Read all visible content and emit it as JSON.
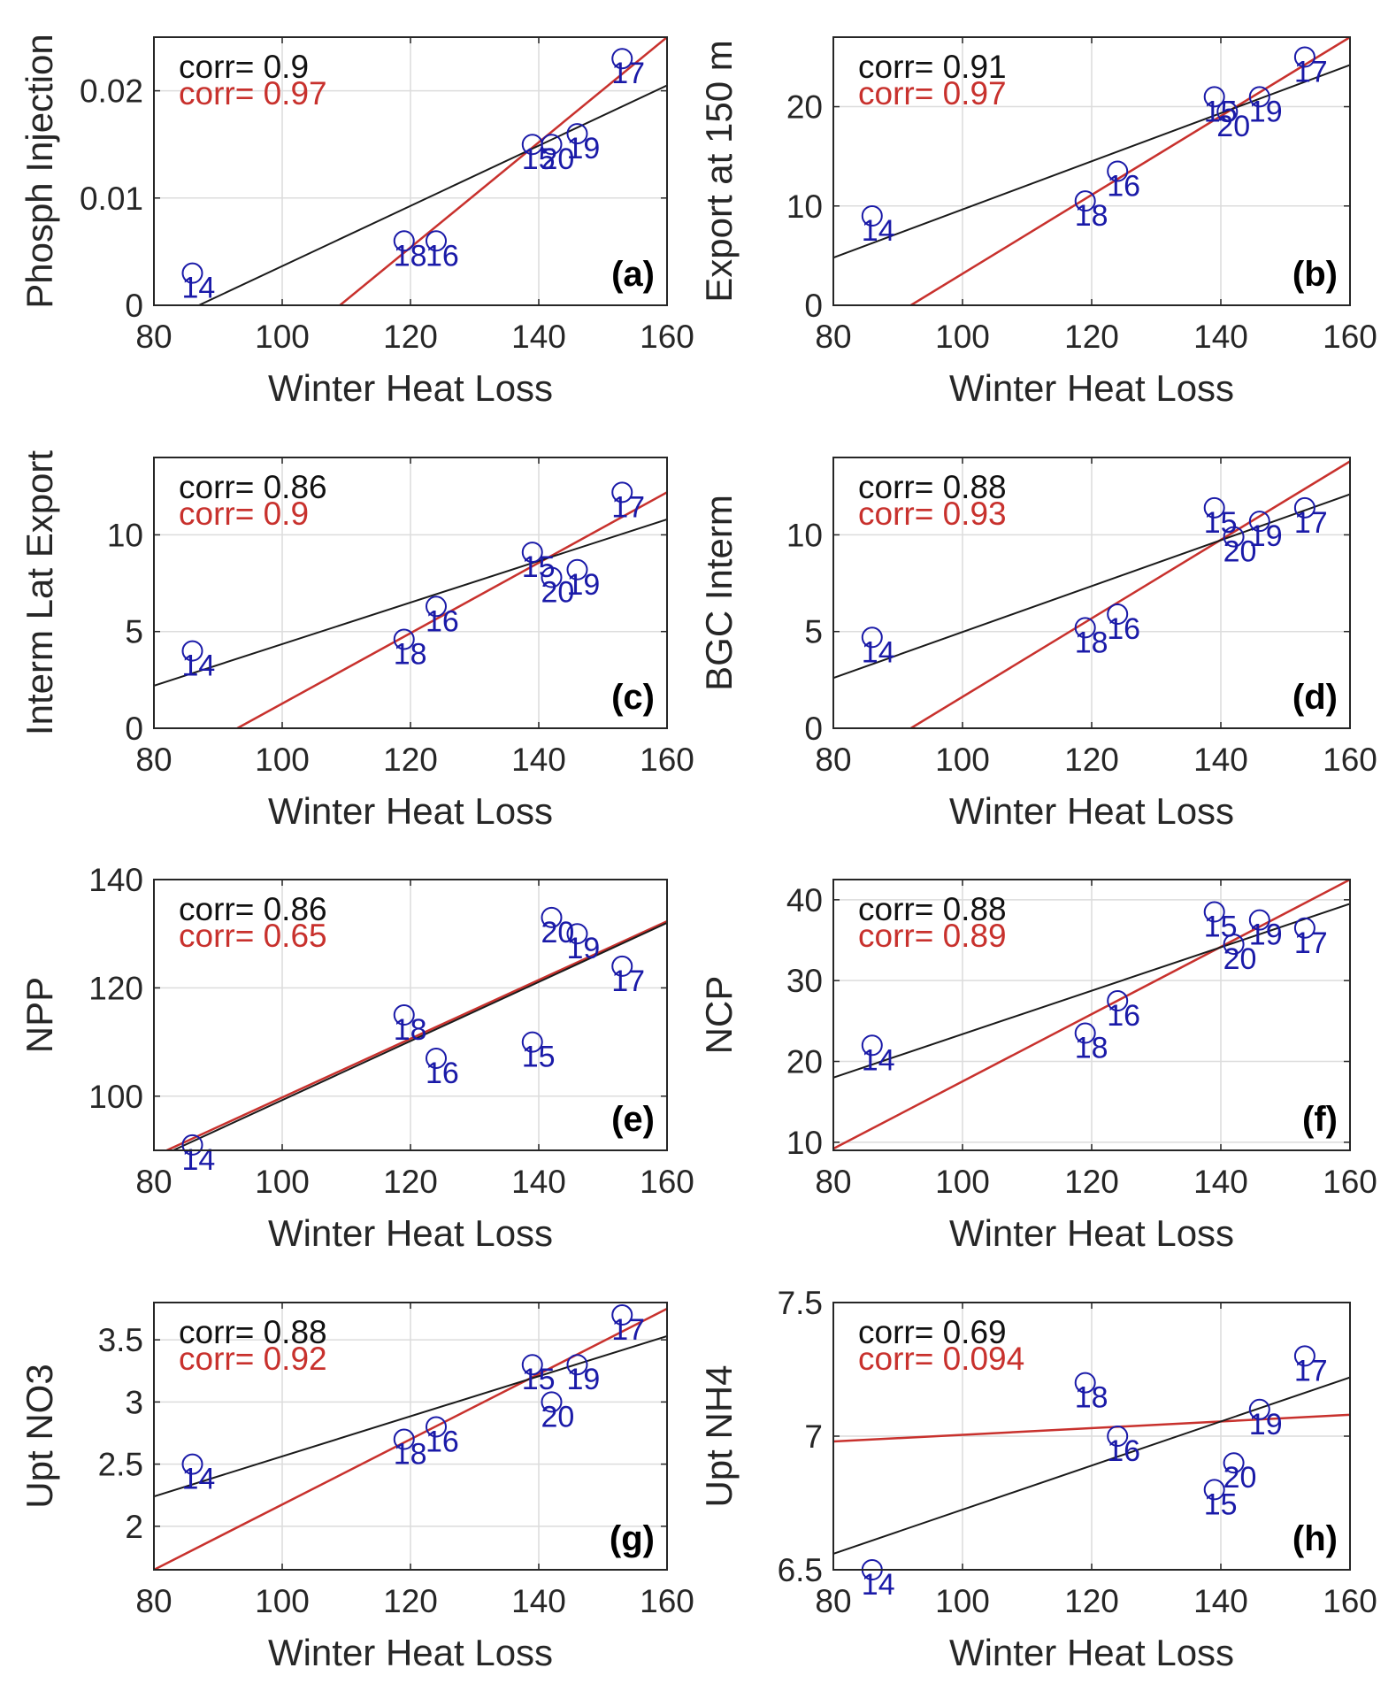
{
  "chart_data": [
    {
      "type": "scatter",
      "panel": "(a)",
      "xlabel": "Winter Heat Loss",
      "ylabel": "Phosph Injection",
      "xlim": [
        80,
        160
      ],
      "ylim": [
        0,
        0.025
      ],
      "xticks": [
        "80",
        "100",
        "120",
        "140",
        "160"
      ],
      "yticks": [
        {
          "v": 0,
          "t": "0"
        },
        {
          "v": 0.01,
          "t": "0.01"
        },
        {
          "v": 0.02,
          "t": "0.02"
        }
      ],
      "grid": true,
      "corr_black": "corr= 0.9",
      "corr_red": "corr= 0.97",
      "points": [
        {
          "label": "14",
          "x": 86,
          "y": 0.003
        },
        {
          "label": "18",
          "x": 119,
          "y": 0.006
        },
        {
          "label": "16",
          "x": 124,
          "y": 0.006
        },
        {
          "label": "15",
          "x": 139,
          "y": 0.015
        },
        {
          "label": "20",
          "x": 142,
          "y": 0.015
        },
        {
          "label": "19",
          "x": 146,
          "y": 0.016
        },
        {
          "label": "17",
          "x": 153,
          "y": 0.023
        }
      ],
      "fit_black": [
        [
          87,
          0
        ],
        [
          160,
          0.0205
        ]
      ],
      "fit_red": [
        [
          109,
          0
        ],
        [
          160,
          0.025
        ]
      ]
    },
    {
      "type": "scatter",
      "panel": "(b)",
      "xlabel": "Winter Heat Loss",
      "ylabel": "Export at 150 m",
      "xlim": [
        80,
        160
      ],
      "ylim": [
        0,
        27
      ],
      "xticks": [
        "80",
        "100",
        "120",
        "140",
        "160"
      ],
      "yticks": [
        {
          "v": 0,
          "t": "0"
        },
        {
          "v": 10,
          "t": "10"
        },
        {
          "v": 20,
          "t": "20"
        }
      ],
      "grid": true,
      "corr_black": "corr= 0.91",
      "corr_red": "corr= 0.97",
      "points": [
        {
          "label": "14",
          "x": 86,
          "y": 9
        },
        {
          "label": "18",
          "x": 119,
          "y": 10.5
        },
        {
          "label": "16",
          "x": 124,
          "y": 13.5
        },
        {
          "label": "15",
          "x": 139,
          "y": 21
        },
        {
          "label": "20",
          "x": 141,
          "y": 19.5
        },
        {
          "label": "19",
          "x": 146,
          "y": 21
        },
        {
          "label": "17",
          "x": 153,
          "y": 25
        }
      ],
      "fit_black": [
        [
          80,
          4.8
        ],
        [
          160,
          24.2
        ]
      ],
      "fit_red": [
        [
          92,
          0
        ],
        [
          160,
          27
        ]
      ]
    },
    {
      "type": "scatter",
      "panel": "(c)",
      "xlabel": "Winter Heat Loss",
      "ylabel": "Interm Lat Export",
      "xlim": [
        80,
        160
      ],
      "ylim": [
        0,
        14
      ],
      "xticks": [
        "80",
        "100",
        "120",
        "140",
        "160"
      ],
      "yticks": [
        {
          "v": 0,
          "t": "0"
        },
        {
          "v": 5,
          "t": "5"
        },
        {
          "v": 10,
          "t": "10"
        }
      ],
      "grid": true,
      "corr_black": "corr= 0.86",
      "corr_red": "corr= 0.9",
      "points": [
        {
          "label": "14",
          "x": 86,
          "y": 4
        },
        {
          "label": "18",
          "x": 119,
          "y": 4.6
        },
        {
          "label": "16",
          "x": 124,
          "y": 6.3
        },
        {
          "label": "15",
          "x": 139,
          "y": 9.1
        },
        {
          "label": "20",
          "x": 142,
          "y": 7.8
        },
        {
          "label": "19",
          "x": 146,
          "y": 8.2
        },
        {
          "label": "17",
          "x": 153,
          "y": 12.2
        }
      ],
      "fit_black": [
        [
          80,
          2.2
        ],
        [
          160,
          10.8
        ]
      ],
      "fit_red": [
        [
          93,
          0
        ],
        [
          160,
          12.2
        ]
      ]
    },
    {
      "type": "scatter",
      "panel": "(d)",
      "xlabel": "Winter Heat Loss",
      "ylabel": "BGC Interm",
      "xlim": [
        80,
        160
      ],
      "ylim": [
        0,
        14
      ],
      "xticks": [
        "80",
        "100",
        "120",
        "140",
        "160"
      ],
      "yticks": [
        {
          "v": 0,
          "t": "0"
        },
        {
          "v": 5,
          "t": "5"
        },
        {
          "v": 10,
          "t": "10"
        }
      ],
      "grid": true,
      "corr_black": "corr= 0.88",
      "corr_red": "corr= 0.93",
      "points": [
        {
          "label": "14",
          "x": 86,
          "y": 4.7
        },
        {
          "label": "18",
          "x": 119,
          "y": 5.2
        },
        {
          "label": "16",
          "x": 124,
          "y": 5.9
        },
        {
          "label": "15",
          "x": 139,
          "y": 11.4
        },
        {
          "label": "20",
          "x": 142,
          "y": 9.9
        },
        {
          "label": "19",
          "x": 146,
          "y": 10.7
        },
        {
          "label": "17",
          "x": 153,
          "y": 11.4
        }
      ],
      "fit_black": [
        [
          80,
          2.6
        ],
        [
          160,
          12.1
        ]
      ],
      "fit_red": [
        [
          92,
          0
        ],
        [
          160,
          13.8
        ]
      ]
    },
    {
      "type": "scatter",
      "panel": "(e)",
      "xlabel": "Winter Heat Loss",
      "ylabel": "NPP",
      "xlim": [
        80,
        160
      ],
      "ylim": [
        90,
        140
      ],
      "xticks": [
        "80",
        "100",
        "120",
        "140",
        "160"
      ],
      "yticks": [
        {
          "v": 100,
          "t": "100"
        },
        {
          "v": 120,
          "t": "120"
        },
        {
          "v": 140,
          "t": "140"
        }
      ],
      "grid": true,
      "corr_black": "corr= 0.86",
      "corr_red": "corr= 0.65",
      "points": [
        {
          "label": "14",
          "x": 86,
          "y": 91
        },
        {
          "label": "18",
          "x": 119,
          "y": 115
        },
        {
          "label": "16",
          "x": 124,
          "y": 107
        },
        {
          "label": "15",
          "x": 139,
          "y": 110
        },
        {
          "label": "20",
          "x": 142,
          "y": 133
        },
        {
          "label": "19",
          "x": 146,
          "y": 130
        },
        {
          "label": "17",
          "x": 153,
          "y": 124
        }
      ],
      "fit_black": [
        [
          83,
          90
        ],
        [
          160,
          132
        ]
      ],
      "fit_red": [
        [
          82,
          90
        ],
        [
          160,
          132.3
        ]
      ]
    },
    {
      "type": "scatter",
      "panel": "(f)",
      "xlabel": "Winter Heat Loss",
      "ylabel": "NCP",
      "xlim": [
        80,
        160
      ],
      "ylim": [
        9,
        42.5
      ],
      "xticks": [
        "80",
        "100",
        "120",
        "140",
        "160"
      ],
      "yticks": [
        {
          "v": 10,
          "t": "10"
        },
        {
          "v": 20,
          "t": "20"
        },
        {
          "v": 30,
          "t": "30"
        },
        {
          "v": 40,
          "t": "40"
        }
      ],
      "grid": true,
      "corr_black": "corr= 0.88",
      "corr_red": "corr= 0.89",
      "points": [
        {
          "label": "14",
          "x": 86,
          "y": 22
        },
        {
          "label": "18",
          "x": 119,
          "y": 23.5
        },
        {
          "label": "16",
          "x": 124,
          "y": 27.5
        },
        {
          "label": "15",
          "x": 139,
          "y": 38.5
        },
        {
          "label": "20",
          "x": 142,
          "y": 34.5
        },
        {
          "label": "19",
          "x": 146,
          "y": 37.5
        },
        {
          "label": "17",
          "x": 153,
          "y": 36.5
        }
      ],
      "fit_black": [
        [
          80,
          18
        ],
        [
          160,
          39.5
        ]
      ],
      "fit_red": [
        [
          80,
          9.2
        ],
        [
          160,
          42.5
        ]
      ]
    },
    {
      "type": "scatter",
      "panel": "(g)",
      "xlabel": "Winter Heat Loss",
      "ylabel": "Upt NO3",
      "xlim": [
        80,
        160
      ],
      "ylim": [
        1.65,
        3.8
      ],
      "xticks": [
        "80",
        "100",
        "120",
        "140",
        "160"
      ],
      "yticks": [
        {
          "v": 2,
          "t": "2"
        },
        {
          "v": 2.5,
          "t": "2.5"
        },
        {
          "v": 3,
          "t": "3"
        },
        {
          "v": 3.5,
          "t": "3.5"
        }
      ],
      "grid": true,
      "corr_black": "corr= 0.88",
      "corr_red": "corr= 0.92",
      "points": [
        {
          "label": "14",
          "x": 86,
          "y": 2.5
        },
        {
          "label": "18",
          "x": 119,
          "y": 2.7
        },
        {
          "label": "16",
          "x": 124,
          "y": 2.8
        },
        {
          "label": "15",
          "x": 139,
          "y": 3.3
        },
        {
          "label": "20",
          "x": 142,
          "y": 3.0
        },
        {
          "label": "19",
          "x": 146,
          "y": 3.3
        },
        {
          "label": "17",
          "x": 153,
          "y": 3.7
        }
      ],
      "fit_black": [
        [
          80,
          2.24
        ],
        [
          160,
          3.53
        ]
      ],
      "fit_red": [
        [
          80,
          1.65
        ],
        [
          160,
          3.75
        ]
      ]
    },
    {
      "type": "scatter",
      "panel": "(h)",
      "xlabel": "Winter Heat Loss",
      "ylabel": "Upt NH4",
      "xlim": [
        80,
        160
      ],
      "ylim": [
        6.5,
        7.5
      ],
      "xticks": [
        "80",
        "100",
        "120",
        "140",
        "160"
      ],
      "yticks": [
        {
          "v": 6.5,
          "t": "6.5"
        },
        {
          "v": 7,
          "t": "7"
        },
        {
          "v": 7.5,
          "t": "7.5"
        }
      ],
      "grid": true,
      "corr_black": "corr= 0.69",
      "corr_red": "corr= 0.094",
      "points": [
        {
          "label": "14",
          "x": 86,
          "y": 6.5
        },
        {
          "label": "18",
          "x": 119,
          "y": 7.2
        },
        {
          "label": "16",
          "x": 124,
          "y": 7.0
        },
        {
          "label": "15",
          "x": 139,
          "y": 6.8
        },
        {
          "label": "20",
          "x": 142,
          "y": 6.9
        },
        {
          "label": "19",
          "x": 146,
          "y": 7.1
        },
        {
          "label": "17",
          "x": 153,
          "y": 7.3
        }
      ],
      "fit_black": [
        [
          80,
          6.56
        ],
        [
          160,
          7.22
        ]
      ],
      "fit_red": [
        [
          80,
          6.98
        ],
        [
          160,
          7.08
        ]
      ]
    }
  ],
  "colors": {
    "fit_black": "#1a1a1a",
    "fit_red": "#c8312d",
    "points": "#1a1aa8",
    "grid": "#dcdcdc",
    "axis": "#262626"
  }
}
